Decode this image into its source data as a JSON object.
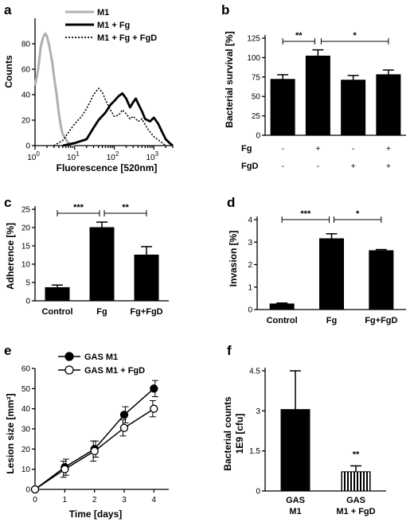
{
  "panels": {
    "a": {
      "letter": "a",
      "ylabel": "Counts",
      "xlabel": "Fluorescence [520nm]",
      "yticks": [
        "0",
        "20",
        "40",
        "60",
        "80"
      ],
      "xtick_exps": [
        "0",
        "1",
        "2",
        "3"
      ],
      "xtick_base": "10",
      "legend": [
        "M1",
        "M1 + Fg",
        "M1 + Fg + FgD"
      ],
      "colors": {
        "M1": "#b0b0b0",
        "M1 + Fg": "#000000",
        "M1 + Fg + FgD": "#000000"
      }
    },
    "b": {
      "letter": "b",
      "ylabel": "Bacterial survival [%]",
      "yticks": [
        "0",
        "25",
        "50",
        "75",
        "100",
        "125"
      ],
      "row_labels": [
        "Fg",
        "FgD"
      ],
      "fg_marks": [
        "-",
        "+",
        "-",
        "+"
      ],
      "fgd_marks": [
        "-",
        "-",
        "+",
        "+"
      ],
      "sig": [
        "**",
        "*"
      ]
    },
    "c": {
      "letter": "c",
      "ylabel": "Adherence [%]",
      "yticks": [
        "0",
        "5",
        "10",
        "15",
        "20",
        "25"
      ],
      "sig": [
        "***",
        "**"
      ]
    },
    "d": {
      "letter": "d",
      "ylabel": "Invasion [%]",
      "yticks": [
        "0",
        "1",
        "2",
        "3",
        "4"
      ],
      "sig": [
        "***",
        "*"
      ]
    },
    "e": {
      "letter": "e",
      "ylabel": "Lesion size [mm²]",
      "xlabel": "Time [days]",
      "yticks": [
        "0",
        "10",
        "20",
        "30",
        "40",
        "50",
        "60"
      ],
      "xticks": [
        "0",
        "1",
        "2",
        "3",
        "4"
      ],
      "legend": [
        "GAS M1",
        "GAS M1 + FgD"
      ]
    },
    "f": {
      "letter": "f",
      "ylabel_line1": "Bacterial counts",
      "ylabel_line2": "1E9 [cfu]",
      "yticks": [
        "0",
        "1.5",
        "3",
        "4.5"
      ],
      "cat_line1": [
        "GAS",
        "GAS"
      ],
      "cat_line2": [
        "M1",
        "M1 + FgD"
      ],
      "sig": "**"
    }
  },
  "chart_data": [
    {
      "panel": "a",
      "type": "line",
      "xlabel": "Fluorescence [520nm]",
      "ylabel": "Counts",
      "xscale": "log",
      "xlim": [
        1,
        3000
      ],
      "ylim": [
        0,
        100
      ],
      "series": [
        {
          "name": "M1",
          "x": [
            1,
            1.2,
            1.4,
            1.6,
            1.8,
            2,
            2.3,
            2.7,
            3,
            3.5,
            4,
            4.5,
            5,
            6,
            7,
            8,
            10
          ],
          "y": [
            47,
            60,
            78,
            85,
            88,
            86,
            78,
            66,
            55,
            40,
            25,
            15,
            9,
            5,
            2,
            1,
            0
          ]
        },
        {
          "name": "M1 + Fg",
          "x": [
            5,
            10,
            20,
            30,
            40,
            60,
            80,
            100,
            130,
            160,
            200,
            250,
            300,
            350,
            400,
            500,
            600,
            800,
            1000,
            1300,
            1600,
            2000,
            2500,
            3000
          ],
          "y": [
            0,
            2,
            5,
            14,
            20,
            26,
            32,
            35,
            39,
            41,
            37,
            30,
            34,
            37,
            33,
            27,
            21,
            19,
            22,
            17,
            11,
            5,
            2,
            0
          ]
        },
        {
          "name": "M1 + Fg + FgD",
          "x": [
            3,
            5,
            8,
            10,
            15,
            20,
            25,
            30,
            40,
            50,
            60,
            80,
            100,
            130,
            160,
            200,
            250,
            300,
            400,
            500,
            700,
            1000,
            1500,
            2000
          ],
          "y": [
            0,
            4,
            13,
            17,
            23,
            29,
            35,
            40,
            45,
            42,
            36,
            28,
            23,
            24,
            28,
            25,
            21,
            23,
            19,
            21,
            13,
            7,
            3,
            0
          ]
        }
      ]
    },
    {
      "panel": "b",
      "type": "bar",
      "ylabel": "Bacterial survival [%]",
      "ylim": [
        0,
        125
      ],
      "categories": [
        "Fg- FgD-",
        "Fg+ FgD-",
        "Fg- FgD+",
        "Fg+ FgD+"
      ],
      "values": [
        72,
        102,
        71,
        78
      ],
      "errors": [
        6,
        8,
        6,
        6
      ]
    },
    {
      "panel": "c",
      "type": "bar",
      "ylabel": "Adherence [%]",
      "ylim": [
        0,
        25
      ],
      "categories": [
        "Control",
        "Fg",
        "Fg+FgD"
      ],
      "values": [
        3.6,
        20,
        12.5
      ],
      "errors": [
        0.7,
        1.5,
        2.3
      ]
    },
    {
      "panel": "d",
      "type": "bar",
      "ylabel": "Invasion [%]",
      "ylim": [
        0,
        4
      ],
      "categories": [
        "Control",
        "Fg",
        "Fg+FgD"
      ],
      "values": [
        0.25,
        3.15,
        2.62
      ],
      "errors": [
        0.04,
        0.22,
        0.05
      ]
    },
    {
      "panel": "e",
      "type": "line",
      "xlabel": "Time [days]",
      "ylabel": "Lesion size [mm²]",
      "xlim": [
        0,
        4.5
      ],
      "ylim": [
        0,
        60
      ],
      "series": [
        {
          "name": "GAS M1",
          "x": [
            0,
            1,
            2,
            3,
            4
          ],
          "y": [
            0,
            11,
            20,
            37,
            50
          ],
          "errors": [
            0,
            4,
            4,
            4,
            4
          ]
        },
        {
          "name": "GAS M1 + FgD",
          "x": [
            0,
            1,
            2,
            3,
            4
          ],
          "y": [
            0,
            10,
            19,
            30.5,
            40
          ],
          "errors": [
            0,
            4,
            5,
            4,
            4
          ]
        }
      ]
    },
    {
      "panel": "f",
      "type": "bar",
      "ylabel": "Bacterial counts 1E9 [cfu]",
      "ylim": [
        0,
        4.5
      ],
      "categories": [
        "GAS M1",
        "GAS M1 + FgD"
      ],
      "values": [
        3.05,
        0.72
      ],
      "errors": [
        1.45,
        0.22
      ]
    }
  ]
}
